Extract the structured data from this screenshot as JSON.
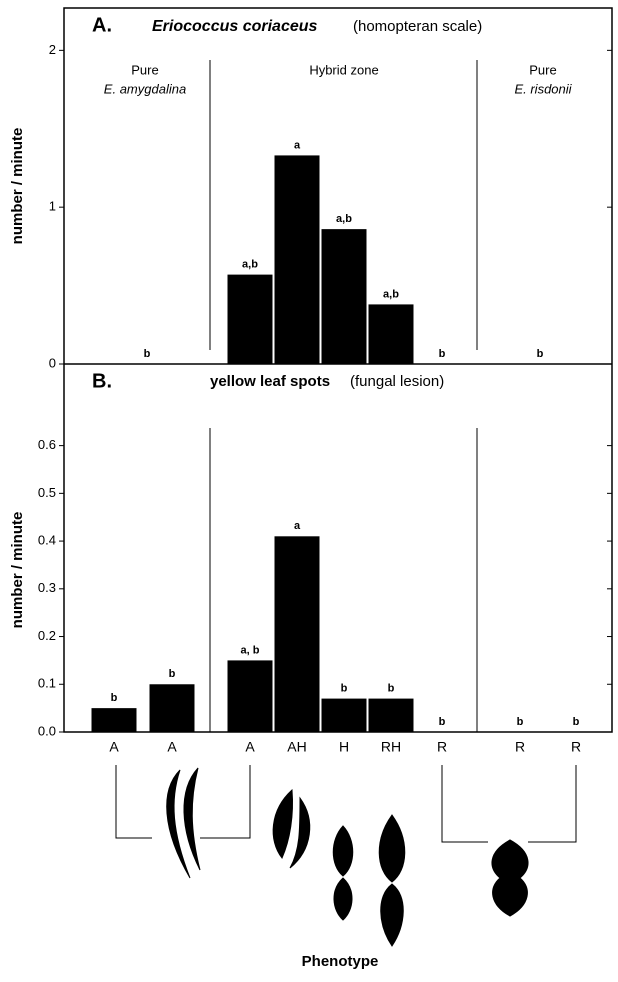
{
  "chart_data": [
    {
      "type": "bar",
      "panel": "A.",
      "title": "Eriococcus coriaceus",
      "subtitle": "(homopteran scale)",
      "y_label": "number / minute",
      "regions": [
        {
          "line1": "Pure",
          "line2": "E. amygdalina"
        },
        {
          "line1": "Hybrid zone"
        },
        {
          "line1": "Pure",
          "line2": "E. risdonii"
        }
      ],
      "categories": [
        null,
        null,
        null,
        null,
        null,
        null,
        null
      ],
      "values": [
        0,
        0.57,
        1.33,
        0.86,
        0.38,
        0,
        0
      ],
      "letters": [
        "b",
        "a,b",
        "a",
        "a,b",
        "a,b",
        "b",
        "b"
      ],
      "color": "#000000",
      "ylim": [
        0,
        2.27
      ],
      "yticks": [
        0,
        1,
        2
      ]
    },
    {
      "type": "bar",
      "panel": "B.",
      "title": "yellow leaf spots",
      "subtitle": "(fungal lesion)",
      "y_label": "number / minute",
      "x_label": "Phenotype",
      "categories": [
        "A",
        "A",
        "A",
        "AH",
        "H",
        "RH",
        "R",
        "R",
        "R"
      ],
      "values": [
        0.05,
        0.1,
        0.15,
        0.41,
        0.07,
        0.07,
        0,
        0,
        0
      ],
      "letters": [
        "b",
        "b",
        "a, b",
        "a",
        "b",
        "b",
        "b",
        "b",
        "b"
      ],
      "color": "#000000",
      "ylim": [
        0,
        0.771
      ],
      "yticks": [
        {
          "value": 0,
          "label": "0.0"
        },
        0.1,
        0.2,
        0.3,
        0.4,
        0.5,
        0.6
      ]
    }
  ]
}
